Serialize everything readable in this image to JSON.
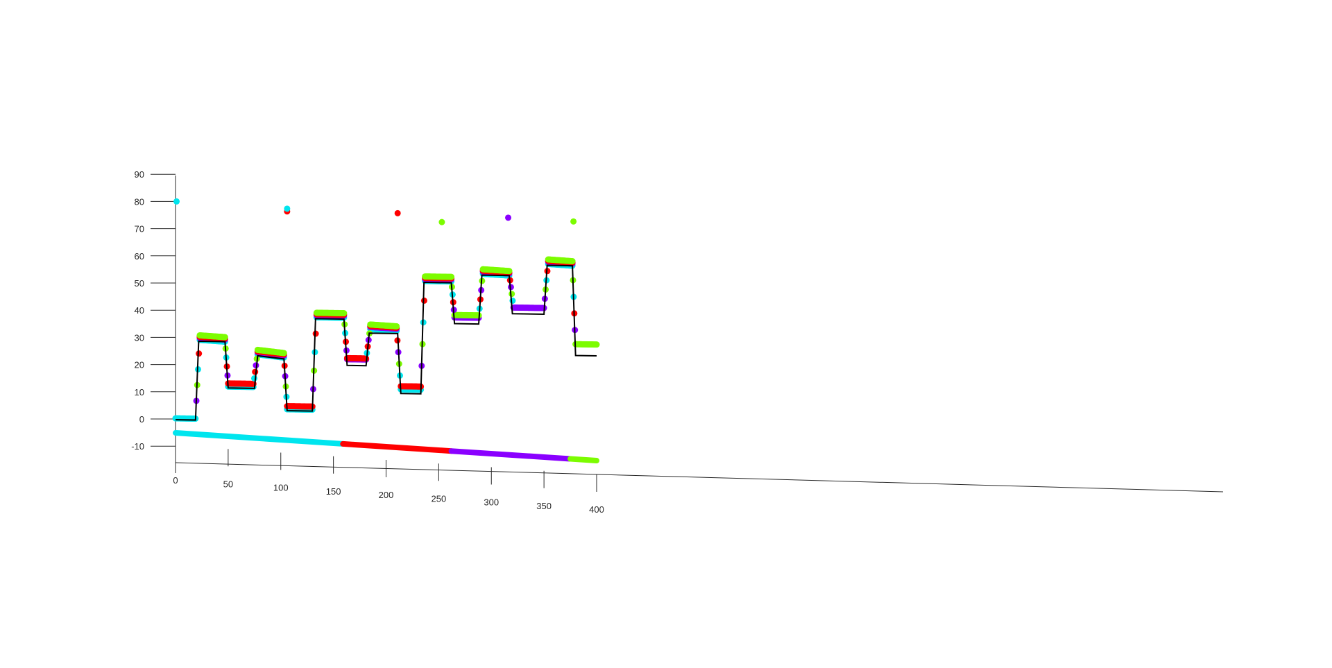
{
  "chart_data": {
    "type": "scatter",
    "projection": "3d-perspective",
    "xlim": [
      0,
      400
    ],
    "ylim": [
      -10,
      90
    ],
    "x_ticks": [
      "0",
      "50",
      "100",
      "150",
      "200",
      "250",
      "300",
      "350",
      "400"
    ],
    "y_ticks": [
      "-10",
      "0",
      "10",
      "20",
      "30",
      "40",
      "50",
      "60",
      "70",
      "80",
      "90"
    ],
    "colors": {
      "cyan": "#00e5ee",
      "red": "#ff0000",
      "purple": "#8a00ff",
      "green": "#7cfc00",
      "reference": "#000000",
      "axis": "#262626"
    },
    "reference_line": {
      "x": [
        0,
        19,
        22,
        47,
        50,
        75,
        78,
        103,
        106,
        130,
        133,
        160,
        163,
        181,
        184,
        211,
        214,
        233,
        236,
        262,
        265,
        288,
        291,
        317,
        320,
        350,
        353,
        377,
        380,
        400
      ],
      "y": [
        1,
        1,
        30,
        30,
        13,
        13,
        25,
        24,
        5,
        5,
        39,
        39,
        22,
        22,
        34,
        34,
        12,
        12,
        53,
        53,
        38,
        38,
        56,
        56,
        42,
        42,
        60,
        60,
        27,
        27
      ]
    },
    "segments": [
      {
        "x": [
          0,
          19
        ],
        "y": [
          1,
          1
        ],
        "layers": [
          "cyan"
        ]
      },
      {
        "x": [
          23,
          47
        ],
        "y": [
          30,
          29.5
        ],
        "layers": [
          "cyan",
          "purple",
          "red",
          "green"
        ]
      },
      {
        "x": [
          50,
          74
        ],
        "y": [
          13,
          13
        ],
        "layers": [
          "cyan",
          "red"
        ]
      },
      {
        "x": [
          78,
          103
        ],
        "y": [
          25,
          24
        ],
        "layers": [
          "cyan",
          "purple",
          "red",
          "green"
        ]
      },
      {
        "x": [
          106,
          130
        ],
        "y": [
          5,
          5
        ],
        "layers": [
          "cyan",
          "red"
        ]
      },
      {
        "x": [
          134,
          160
        ],
        "y": [
          39,
          39
        ],
        "layers": [
          "cyan",
          "purple",
          "red",
          "green"
        ]
      },
      {
        "x": [
          163,
          181
        ],
        "y": [
          23,
          23
        ],
        "layers": [
          "purple",
          "red"
        ]
      },
      {
        "x": [
          185,
          210
        ],
        "y": [
          35,
          34.5
        ],
        "layers": [
          "cyan",
          "purple",
          "red",
          "green"
        ]
      },
      {
        "x": [
          214,
          233
        ],
        "y": [
          13,
          13
        ],
        "layers": [
          "cyan",
          "red"
        ]
      },
      {
        "x": [
          237,
          262
        ],
        "y": [
          53,
          53
        ],
        "layers": [
          "cyan",
          "purple",
          "red",
          "green"
        ]
      },
      {
        "x": [
          265,
          288
        ],
        "y": [
          39,
          39
        ],
        "layers": [
          "purple",
          "green"
        ]
      },
      {
        "x": [
          292,
          317
        ],
        "y": [
          56,
          55.5
        ],
        "layers": [
          "cyan",
          "purple",
          "red",
          "green"
        ]
      },
      {
        "x": [
          321,
          350
        ],
        "y": [
          43,
          43
        ],
        "layers": [
          "purple"
        ]
      },
      {
        "x": [
          354,
          377
        ],
        "y": [
          60,
          59.5
        ],
        "layers": [
          "cyan",
          "purple",
          "red",
          "green"
        ]
      },
      {
        "x": [
          380,
          400
        ],
        "y": [
          29,
          29
        ],
        "layers": [
          "green"
        ]
      }
    ],
    "outliers": [
      {
        "x": 1,
        "y": 80,
        "color": "cyan"
      },
      {
        "x": 106,
        "y": 77,
        "color": "red"
      },
      {
        "x": 106,
        "y": 78,
        "color": "cyan"
      },
      {
        "x": 211,
        "y": 77,
        "color": "red"
      },
      {
        "x": 253,
        "y": 74,
        "color": "green"
      },
      {
        "x": 316,
        "y": 76,
        "color": "purple"
      },
      {
        "x": 378,
        "y": 75,
        "color": "green"
      }
    ],
    "base_strip": [
      {
        "x": [
          0,
          159
        ],
        "color": "cyan"
      },
      {
        "x": [
          159,
          262
        ],
        "color": "red"
      },
      {
        "x": [
          262,
          375
        ],
        "color": "purple"
      },
      {
        "x": [
          375,
          400
        ],
        "color": "green"
      }
    ],
    "grid": false,
    "legend": "none"
  }
}
